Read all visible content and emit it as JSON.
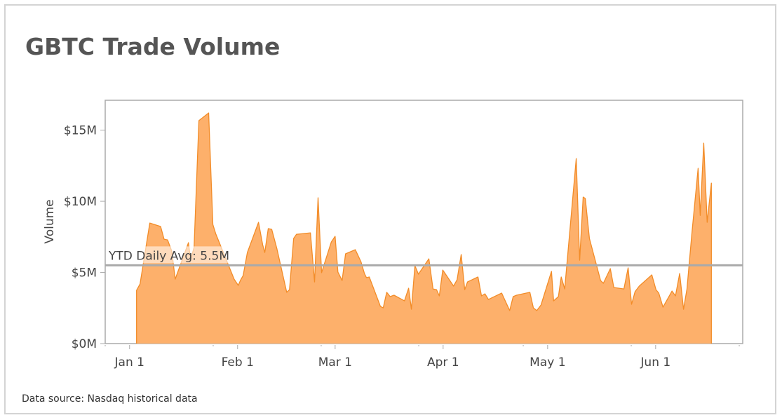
{
  "header": {
    "title": "GBTC Trade Volume"
  },
  "footer": {
    "source": "Data source: Nasdaq historical data"
  },
  "colors": {
    "fill": "#FDB06B",
    "stroke": "#F28C28",
    "axis": "#aaaaaa",
    "avg_line": "#aaaaaa",
    "text": "#444444"
  },
  "chart_data": {
    "type": "area",
    "title": "GBTC Trade Volume",
    "xlabel": "",
    "ylabel": "Volume",
    "ylim": [
      0,
      17.1
    ],
    "y_unit": "$M",
    "y_ticks": [
      {
        "value": 0,
        "label": "$0M"
      },
      {
        "value": 5,
        "label": "$5M"
      },
      {
        "value": 10,
        "label": "$10M"
      },
      {
        "value": 15,
        "label": "$15M"
      }
    ],
    "x_domain_days": [
      -7,
      176
    ],
    "x_ticks": [
      {
        "day": 0,
        "label": "Jan 1"
      },
      {
        "day": 31,
        "label": "Feb 1"
      },
      {
        "day": 59,
        "label": "Mar 1"
      },
      {
        "day": 90,
        "label": "Apr 1"
      },
      {
        "day": 120,
        "label": "May 1"
      },
      {
        "day": 151,
        "label": "Jun 1"
      }
    ],
    "x_minor_ticks": [
      -7,
      24,
      55,
      83,
      113,
      144,
      175
    ],
    "grid": false,
    "legend": null,
    "reference_line": {
      "value": 5.5,
      "label": "YTD Daily Avg: 5.5M"
    },
    "series": [
      {
        "name": "Volume ($M)",
        "x_unit": "days since Jan 1",
        "points": [
          [
            2.0,
            3.74
          ],
          [
            3.0,
            4.19
          ],
          [
            5.8,
            8.47
          ],
          [
            8.9,
            8.23
          ],
          [
            9.9,
            7.34
          ],
          [
            10.9,
            7.29
          ],
          [
            12.1,
            6.5
          ],
          [
            13.1,
            4.53
          ],
          [
            16.9,
            7.09
          ],
          [
            17.5,
            5.9
          ],
          [
            18.5,
            6.75
          ],
          [
            19.9,
            15.67
          ],
          [
            22.7,
            16.21
          ],
          [
            23.9,
            8.37
          ],
          [
            24.7,
            7.73
          ],
          [
            30.0,
            4.53
          ],
          [
            31.2,
            4.09
          ],
          [
            31.8,
            4.43
          ],
          [
            32.6,
            4.78
          ],
          [
            33.8,
            6.4
          ],
          [
            37.0,
            8.52
          ],
          [
            38.2,
            6.95
          ],
          [
            38.8,
            6.4
          ],
          [
            39.8,
            8.08
          ],
          [
            40.8,
            8.03
          ],
          [
            42.3,
            6.65
          ],
          [
            45.1,
            3.6
          ],
          [
            45.9,
            3.79
          ],
          [
            47.1,
            7.39
          ],
          [
            47.9,
            7.68
          ],
          [
            51.9,
            7.78
          ],
          [
            53.1,
            4.33
          ],
          [
            54.1,
            10.25
          ],
          [
            55.1,
            4.98
          ],
          [
            57.9,
            7.14
          ],
          [
            59.0,
            7.54
          ],
          [
            59.8,
            5.02
          ],
          [
            61.0,
            4.43
          ],
          [
            62.0,
            6.31
          ],
          [
            64.8,
            6.6
          ],
          [
            66.4,
            5.76
          ],
          [
            67.4,
            4.93
          ],
          [
            68.0,
            4.63
          ],
          [
            68.8,
            4.68
          ],
          [
            72.0,
            2.61
          ],
          [
            72.8,
            2.51
          ],
          [
            73.8,
            3.6
          ],
          [
            74.8,
            3.3
          ],
          [
            75.9,
            3.4
          ],
          [
            78.9,
            3.0
          ],
          [
            80.1,
            3.89
          ],
          [
            80.9,
            2.41
          ],
          [
            81.9,
            5.47
          ],
          [
            82.9,
            4.88
          ],
          [
            85.9,
            5.96
          ],
          [
            87.1,
            3.84
          ],
          [
            88.1,
            3.79
          ],
          [
            88.9,
            3.35
          ],
          [
            89.9,
            5.17
          ],
          [
            93.0,
            4.04
          ],
          [
            94.0,
            4.48
          ],
          [
            95.2,
            6.26
          ],
          [
            96.2,
            3.79
          ],
          [
            97.0,
            4.33
          ],
          [
            100.0,
            4.68
          ],
          [
            101.0,
            3.35
          ],
          [
            102.0,
            3.5
          ],
          [
            103.0,
            3.1
          ],
          [
            106.8,
            3.55
          ],
          [
            109.1,
            2.32
          ],
          [
            110.1,
            3.3
          ],
          [
            111.1,
            3.4
          ],
          [
            114.9,
            3.6
          ],
          [
            115.9,
            2.51
          ],
          [
            116.9,
            2.32
          ],
          [
            118.1,
            2.71
          ],
          [
            121.1,
            5.07
          ],
          [
            121.7,
            3.0
          ],
          [
            123.1,
            3.3
          ],
          [
            123.9,
            4.68
          ],
          [
            124.9,
            3.84
          ],
          [
            128.2,
            13.0
          ],
          [
            129.2,
            5.86
          ],
          [
            130.2,
            10.3
          ],
          [
            130.8,
            10.2
          ],
          [
            132.0,
            7.39
          ],
          [
            135.2,
            4.43
          ],
          [
            136.0,
            4.24
          ],
          [
            138.0,
            5.27
          ],
          [
            139.0,
            3.94
          ],
          [
            141.9,
            3.84
          ],
          [
            143.1,
            5.32
          ],
          [
            144.1,
            2.76
          ],
          [
            145.1,
            3.65
          ],
          [
            146.3,
            4.04
          ],
          [
            149.9,
            4.83
          ],
          [
            151.1,
            3.79
          ],
          [
            151.9,
            3.55
          ],
          [
            153.1,
            2.56
          ],
          [
            155.7,
            3.69
          ],
          [
            156.7,
            3.35
          ],
          [
            157.9,
            4.93
          ],
          [
            159.0,
            2.41
          ],
          [
            160.0,
            3.84
          ],
          [
            161.4,
            7.73
          ],
          [
            163.2,
            12.32
          ],
          [
            163.8,
            9.01
          ],
          [
            164.8,
            14.09
          ],
          [
            165.8,
            8.52
          ],
          [
            167.0,
            11.28
          ]
        ]
      }
    ]
  }
}
